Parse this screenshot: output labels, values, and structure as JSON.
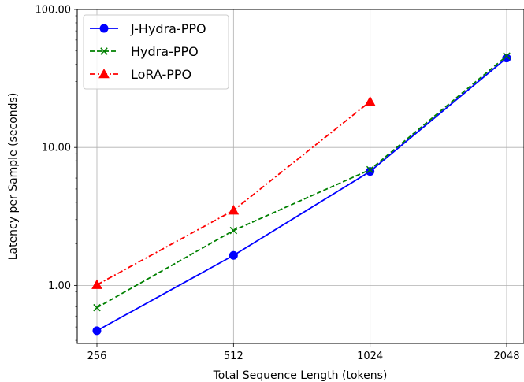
{
  "chart_data": {
    "type": "line",
    "xlabel": "Total Sequence Length (tokens)",
    "ylabel": "Latency per Sample (seconds)",
    "x_scale": "log2",
    "y_scale": "log",
    "x_ticks": [
      "256",
      "512",
      "1024",
      "2048"
    ],
    "y_ticks": [
      "1.00",
      "10.00",
      "100.00"
    ],
    "ylim": [
      0.38,
      100
    ],
    "grid": true,
    "legend_position": "top-left",
    "series": [
      {
        "name": "J-Hydra-PPO",
        "color": "#0000ff",
        "marker": "circle",
        "linestyle": "solid",
        "x": [
          256,
          512,
          1024,
          2048
        ],
        "values": [
          0.47,
          1.65,
          6.7,
          44.5
        ]
      },
      {
        "name": "Hydra-PPO",
        "color": "#008000",
        "marker": "x",
        "linestyle": "dashed",
        "x": [
          256,
          512,
          1024,
          2048
        ],
        "values": [
          0.69,
          2.5,
          6.9,
          46.0
        ]
      },
      {
        "name": "LoRA-PPO",
        "color": "#ff0000",
        "marker": "triangle",
        "linestyle": "dashdot",
        "x": [
          256,
          512,
          1024
        ],
        "values": [
          1.01,
          3.5,
          21.5
        ]
      }
    ]
  }
}
